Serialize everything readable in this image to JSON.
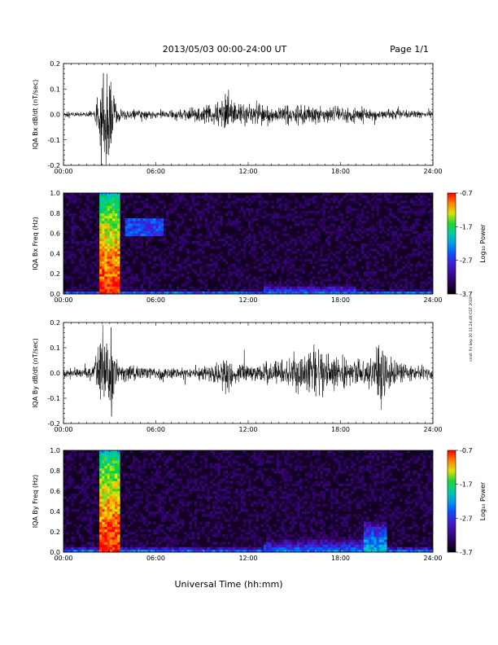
{
  "header": {
    "title": "2013/05/03  00:00-24:00 UT",
    "page": "Page 1/1"
  },
  "footer": {
    "xlabel": "Universal Time (hh:mm)"
  },
  "stamp": "cmd: Fri Sep 20 11:24:48 CST 2019",
  "colorbar": {
    "label": "Log₁₀ Power",
    "ticks": [
      "-0.7",
      "-1.7",
      "-2.7",
      "-3.7"
    ]
  },
  "chart_data": [
    {
      "type": "line",
      "title": "",
      "ylabel": "IQA Bx dB/dt (nT/sec)",
      "xlabel": "",
      "xlim": [
        "00:00",
        "24:00"
      ],
      "ylim": [
        -0.2,
        0.2
      ],
      "xticks": [
        "00:00",
        "06:00",
        "12:00",
        "18:00",
        "24:00"
      ],
      "yticks": [
        "-0.2",
        "-0.1",
        "0.0",
        "0.1",
        "0.2"
      ],
      "series": [
        {
          "x_hours": [
            0,
            1,
            2,
            2.5,
            3,
            3.4,
            4,
            5,
            6,
            7,
            8,
            9,
            10,
            10.4,
            10.6,
            10.8,
            11,
            12,
            13,
            14,
            15,
            16,
            17,
            18,
            19,
            20,
            21,
            22,
            23,
            24
          ],
          "amplitude": [
            0.012,
            0.012,
            0.016,
            0.21,
            0.21,
            0.05,
            0.025,
            0.02,
            0.02,
            0.02,
            0.03,
            0.035,
            0.05,
            0.09,
            0.12,
            0.07,
            0.06,
            0.05,
            0.05,
            0.045,
            0.05,
            0.045,
            0.04,
            0.035,
            0.035,
            0.03,
            0.025,
            0.02,
            0.018,
            0.015
          ]
        }
      ]
    },
    {
      "type": "heatmap",
      "title": "",
      "ylabel": "IQA Bx Freq (Hz)",
      "xlabel": "",
      "xlim": [
        "00:00",
        "24:00"
      ],
      "ylim": [
        0.0,
        1.0
      ],
      "xticks": [
        "00:00",
        "06:00",
        "12:00",
        "18:00",
        "24:00"
      ],
      "yticks": [
        "0.0",
        "0.2",
        "0.4",
        "0.6",
        "0.8",
        "1.0"
      ],
      "zlabel": "Log₁₀ Power",
      "zlim": [
        -3.7,
        -0.7
      ],
      "features": [
        {
          "hours": [
            2.4,
            3.6
          ],
          "freq": [
            0.0,
            1.0
          ],
          "level": -0.7
        },
        {
          "hours": [
            0.0,
            24.0
          ],
          "freq": [
            0.0,
            0.04
          ],
          "level": -2.2
        },
        {
          "hours": [
            4.0,
            6.5
          ],
          "freq": [
            0.58,
            0.75
          ],
          "level": -2.6
        },
        {
          "hours": [
            13.0,
            19.0
          ],
          "freq": [
            0.0,
            0.1
          ],
          "level": -2.4
        }
      ]
    },
    {
      "type": "line",
      "title": "",
      "ylabel": "IQA By dB/dt (nT/sec)",
      "xlabel": "",
      "xlim": [
        "00:00",
        "24:00"
      ],
      "ylim": [
        -0.2,
        0.2
      ],
      "xticks": [
        "00:00",
        "06:00",
        "12:00",
        "18:00",
        "24:00"
      ],
      "yticks": [
        "-0.2",
        "-0.1",
        "0.0",
        "0.1",
        "0.2"
      ],
      "series": [
        {
          "x_hours": [
            0,
            1,
            2,
            2.5,
            3,
            3.4,
            4,
            5,
            6,
            7,
            8,
            9,
            10,
            10.4,
            10.6,
            10.8,
            11,
            12,
            13,
            14,
            15,
            16,
            17,
            18,
            19,
            20,
            20.5,
            20.8,
            21,
            22,
            23,
            24
          ],
          "amplitude": [
            0.02,
            0.025,
            0.03,
            0.21,
            0.21,
            0.08,
            0.04,
            0.03,
            0.03,
            0.025,
            0.03,
            0.035,
            0.05,
            0.1,
            0.12,
            0.08,
            0.05,
            0.04,
            0.05,
            0.06,
            0.09,
            0.1,
            0.09,
            0.07,
            0.06,
            0.07,
            0.12,
            0.21,
            0.1,
            0.05,
            0.04,
            0.03
          ]
        }
      ]
    },
    {
      "type": "heatmap",
      "title": "",
      "ylabel": "IQA By Freq (Hz)",
      "xlabel": "",
      "xlim": [
        "00:00",
        "24:00"
      ],
      "ylim": [
        0.0,
        1.0
      ],
      "xticks": [
        "00:00",
        "06:00",
        "12:00",
        "18:00",
        "24:00"
      ],
      "yticks": [
        "0.0",
        "0.2",
        "0.4",
        "0.6",
        "0.8",
        "1.0"
      ],
      "zlabel": "Log₁₀ Power",
      "zlim": [
        -3.7,
        -0.7
      ],
      "features": [
        {
          "hours": [
            2.4,
            3.6
          ],
          "freq": [
            0.0,
            1.0
          ],
          "level": -0.7
        },
        {
          "hours": [
            0.0,
            24.0
          ],
          "freq": [
            0.0,
            0.05
          ],
          "level": -2.2
        },
        {
          "hours": [
            13.0,
            20.0
          ],
          "freq": [
            0.0,
            0.15
          ],
          "level": -2.4
        },
        {
          "hours": [
            19.5,
            21.0
          ],
          "freq": [
            0.0,
            0.3
          ],
          "level": -2.0
        }
      ]
    }
  ]
}
